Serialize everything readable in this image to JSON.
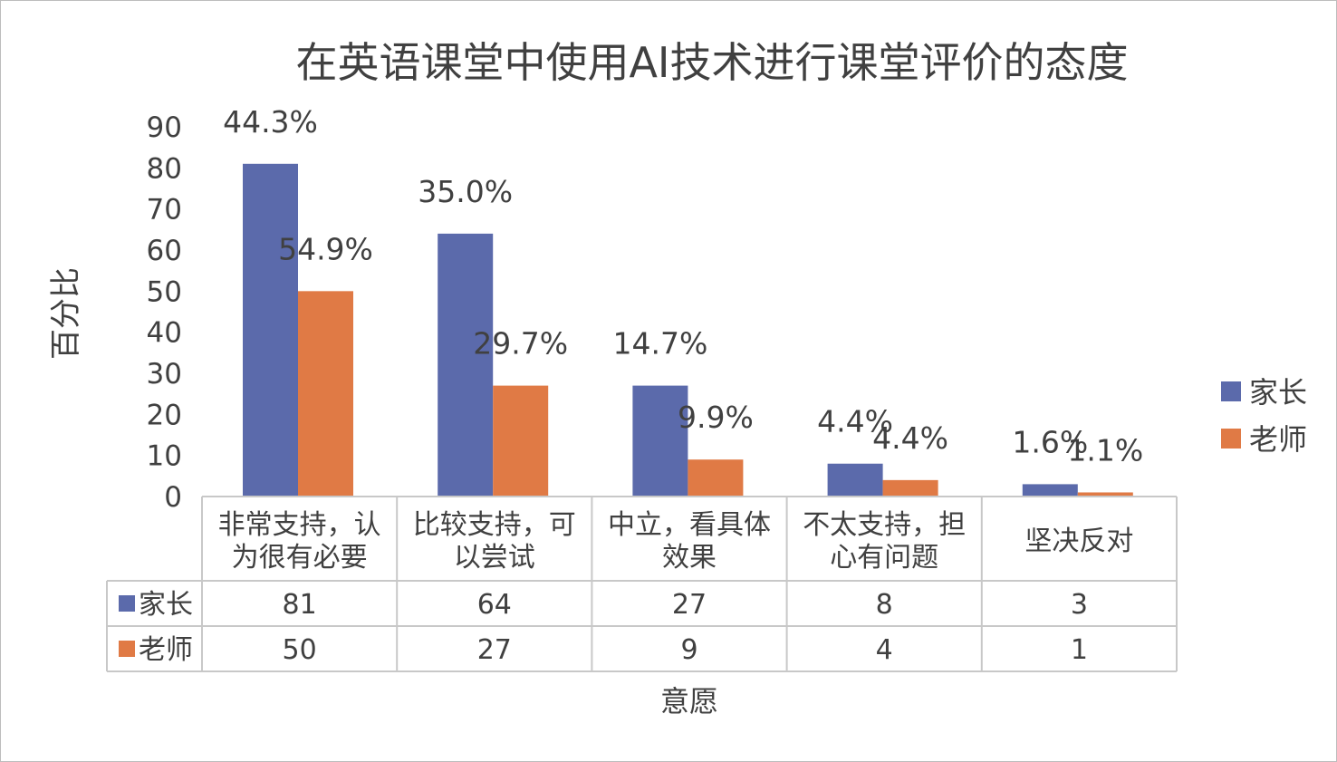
{
  "chart_data": {
    "type": "bar",
    "title": "在英语课堂中使用AI技术进行课堂评价的态度",
    "xlabel": "意愿",
    "ylabel": "百分比",
    "ylim": [
      0,
      90
    ],
    "y_ticks": [
      0,
      10,
      20,
      30,
      40,
      50,
      60,
      70,
      80,
      90
    ],
    "grid": false,
    "legend_position": "right",
    "categories": [
      [
        "非常支持，认",
        "为很有必要"
      ],
      [
        "比较支持，可",
        "以尝试"
      ],
      [
        "中立，看具体",
        "效果"
      ],
      [
        "不太支持，担",
        "心有问题"
      ],
      [
        "坚决反对"
      ]
    ],
    "series": [
      {
        "name": "家长",
        "color": "#5b6aab",
        "values": [
          81,
          64,
          27,
          8,
          3
        ],
        "labels": [
          "44.3%",
          "35.0%",
          "14.7%",
          "4.4%",
          "1.6%"
        ]
      },
      {
        "name": "老师",
        "color": "#e07a45",
        "values": [
          50,
          27,
          9,
          4,
          1
        ],
        "labels": [
          "54.9%",
          "29.7%",
          "9.9%",
          "4.4%",
          "1.1%"
        ]
      }
    ],
    "data_table": true
  }
}
